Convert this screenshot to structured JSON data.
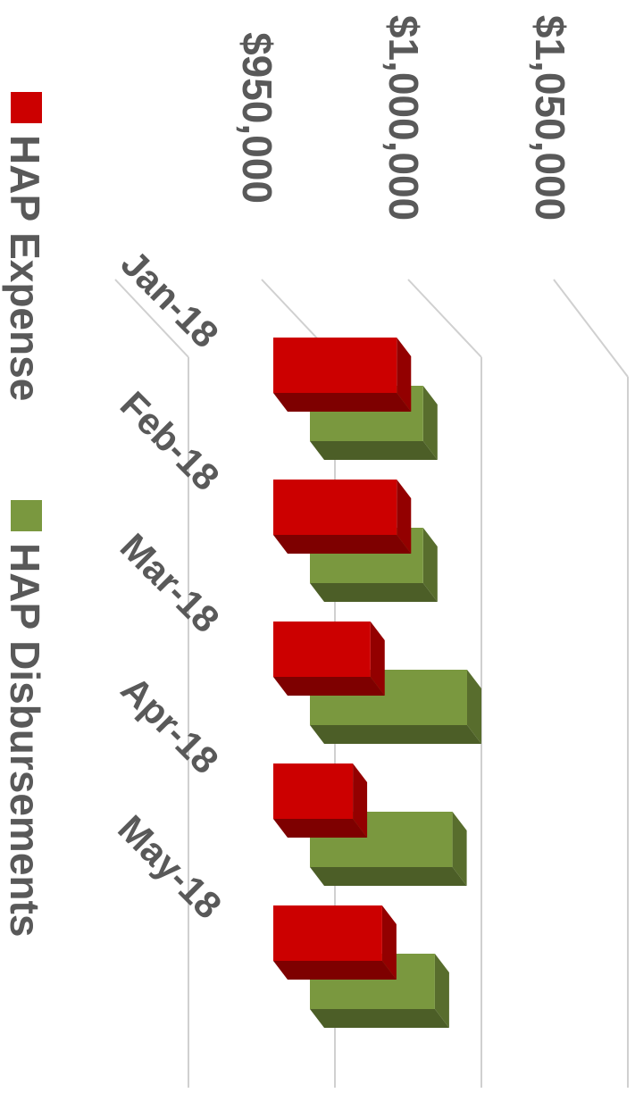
{
  "chart_data": {
    "type": "bar",
    "orientation": "3d clustered bar, rotated 90° clockwise",
    "categories": [
      "Jan-18",
      "Feb-18",
      "Mar-18",
      "Apr-18",
      "May-18"
    ],
    "series": [
      {
        "name": "HAP Expense",
        "values": [
          1026000,
          1026000,
          1017000,
          1011000,
          1021000
        ]
      },
      {
        "name": "HAP Disbursements",
        "values": [
          1035000,
          1035000,
          1050000,
          1045000,
          1039000
        ]
      }
    ],
    "ylim": [
      950000,
      1060000
    ],
    "ticks": [
      950000,
      1000000,
      1050000
    ],
    "tick_labels": [
      "$950,000",
      "$1,000,000",
      "$1,050,000"
    ],
    "grid": true,
    "legend_position": "left",
    "colors": {
      "HAP Expense": "#cc0000",
      "HAP Disbursements": "#7a983f"
    }
  }
}
